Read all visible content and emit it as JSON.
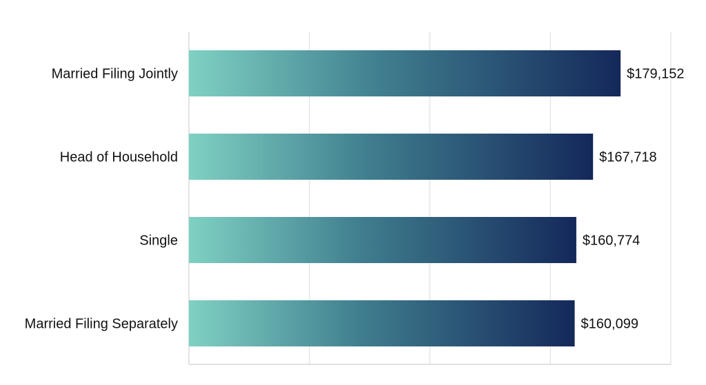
{
  "chart_data": {
    "type": "bar",
    "orientation": "horizontal",
    "categories": [
      "Married Filing Jointly",
      "Head of Household",
      "Single",
      "Married Filing Separately"
    ],
    "values": [
      179152,
      167718,
      160774,
      160099
    ],
    "value_labels": [
      "$179,152",
      "$167,718",
      "$160,774",
      "$160,099"
    ],
    "title": "",
    "xlabel": "",
    "ylabel": "",
    "xlim": [
      0,
      200000
    ],
    "grid": true,
    "legend": "none",
    "colors": {
      "gradient_start": "#7fd1c3",
      "gradient_mid": "#3f7d8e",
      "gradient_end": "#14285a",
      "grid": "#d9d9d9",
      "axis": "#c4c4c4",
      "text": "#111111"
    }
  }
}
